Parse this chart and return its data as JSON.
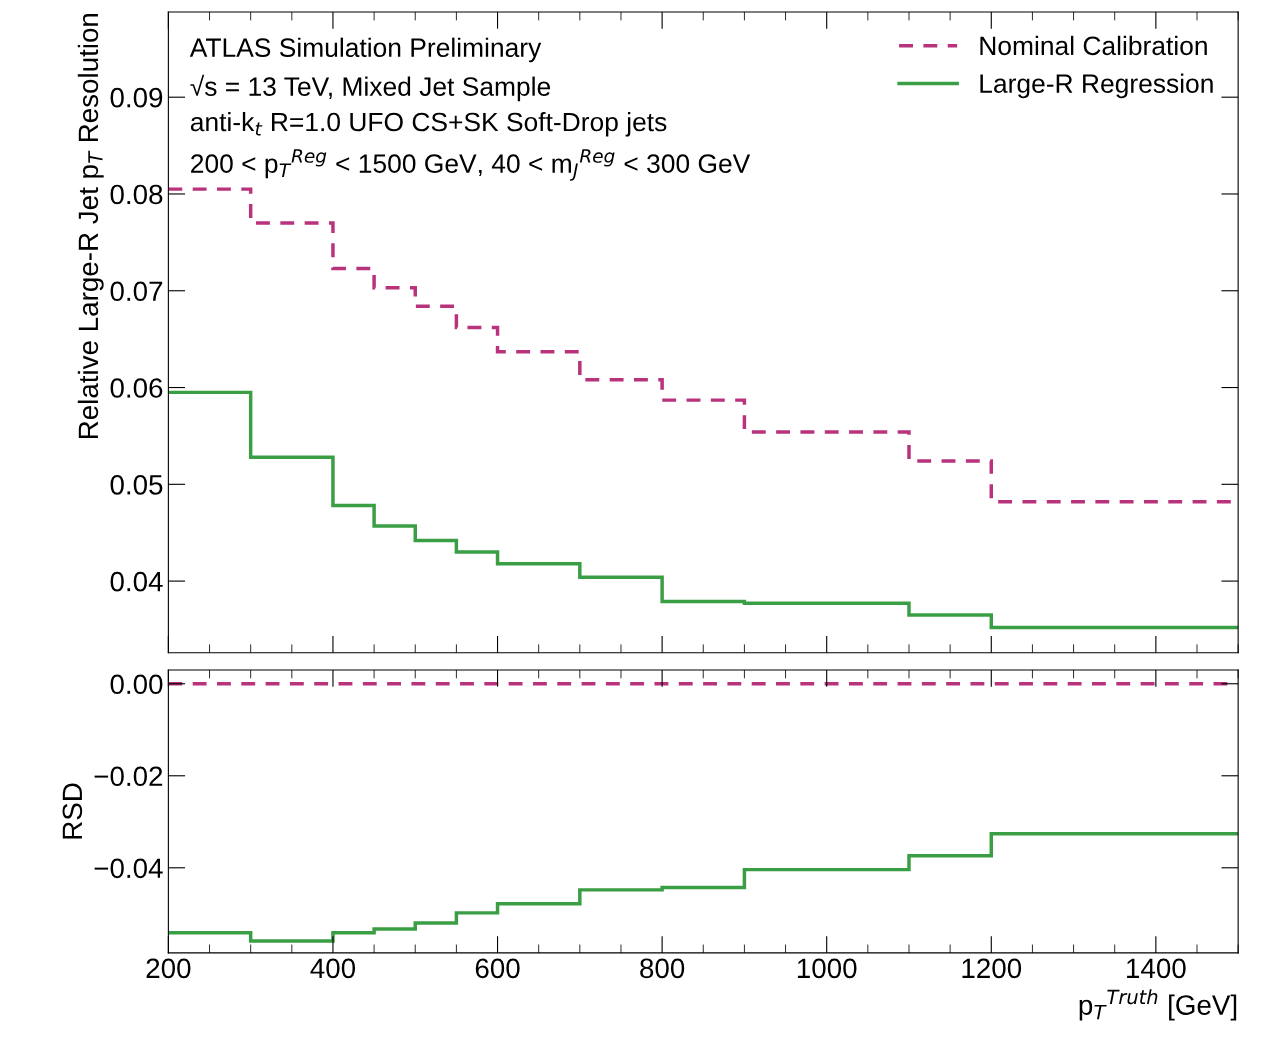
{
  "chart_data": [
    {
      "type": "histogram",
      "ylabel": "Relative Large-R Jet p$_{T}$ Resolution",
      "bins": [
        200,
        300,
        400,
        450,
        500,
        550,
        600,
        700,
        800,
        900,
        1100,
        1200,
        1500
      ],
      "series": [
        {
          "name": "Nominal Calibration",
          "color": "#b8327c",
          "line_style": "dashed",
          "values": [
            0.0805,
            0.077,
            0.0723,
            0.0703,
            0.0684,
            0.0662,
            0.0637,
            0.0608,
            0.0587,
            0.0554,
            0.0524,
            0.0482
          ]
        },
        {
          "name": "Large-R Regression",
          "color": "#3a9e44",
          "line_style": "solid",
          "values": [
            0.0595,
            0.0528,
            0.0478,
            0.0457,
            0.0442,
            0.043,
            0.0418,
            0.0404,
            0.0379,
            0.0377,
            0.0365,
            0.0352
          ]
        }
      ],
      "annotations": [
        "ATLAS Simulation Preliminary",
        "√s = 13 TeV, Mixed Jet Sample",
        "anti-k$_{t}$ R=1.0 UFO CS+SK Soft-Drop jets",
        "200 < p$_{T}$$^{Reg}$ < 1500 GeV, 40 < m$_{J}$$^{Reg}$ < 300 GeV"
      ],
      "xlim": [
        200,
        1500
      ],
      "xticks": [
        200,
        400,
        600,
        800,
        1000,
        1200,
        1400
      ],
      "ylim": [
        0.0326,
        0.0988
      ],
      "yticks": [
        0.04,
        0.05,
        0.06,
        0.07,
        0.08,
        0.09
      ],
      "tick_labels": "y",
      "legend": "top right",
      "grid": false
    },
    {
      "type": "histogram",
      "xlabel": "p$_{T}$$^{Truth}$ [GeV]",
      "ylabel": "RSD",
      "bins": [
        200,
        300,
        400,
        450,
        500,
        550,
        600,
        700,
        800,
        900,
        1100,
        1200,
        1500
      ],
      "series": [
        {
          "color": "#b8327c",
          "line_style": "dashed",
          "values": [
            0,
            0,
            0,
            0,
            0,
            0,
            0,
            0,
            0,
            0,
            0,
            0
          ]
        },
        {
          "color": "#3a9e44",
          "line_style": "solid",
          "values": [
            -0.0541,
            -0.0559,
            -0.0541,
            -0.0533,
            -0.052,
            -0.0498,
            -0.0478,
            -0.0448,
            -0.0443,
            -0.0404,
            -0.0374,
            -0.0326
          ]
        }
      ],
      "xlim": [
        200,
        1500
      ],
      "xticks": [
        200,
        400,
        600,
        800,
        1000,
        1200,
        1400
      ],
      "ylim": [
        -0.0585,
        0.003
      ],
      "yticks": [
        {
          "value": 0,
          "label": "0.00"
        },
        {
          "value": -0.02,
          "label": "−0.02"
        },
        {
          "value": -0.04,
          "label": "−0.04"
        }
      ],
      "grid": false
    }
  ]
}
